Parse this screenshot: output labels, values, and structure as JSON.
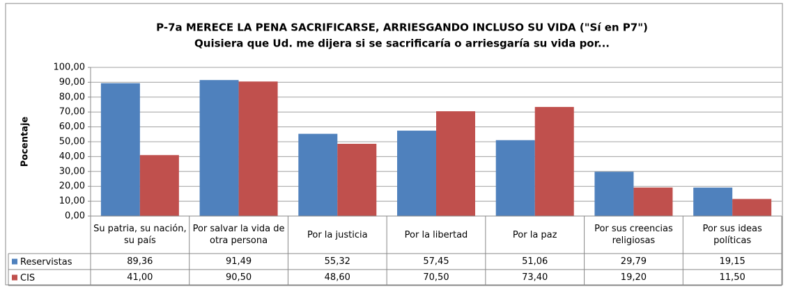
{
  "chart_data": {
    "type": "bar",
    "title": "P-7a MERECE LA PENA SACRIFICARSE, ARRIESGANDO INCLUSO SU VIDA (\"Sí en P7\")",
    "subtitle": "Quisiera que Ud. me dijera si se sacrificaría o arriesgaría su vida por...",
    "ylabel": "Pocentaje",
    "categories": [
      "Su patria, su nación, su país",
      "Por salvar la vida de otra persona",
      "Por la justicia",
      "Por la libertad",
      "Por la paz",
      "Por sus creencias religiosas",
      "Por sus ideas políticas"
    ],
    "series": [
      {
        "name": "Reservistas",
        "color": "#4f81bd",
        "values": [
          89.36,
          91.49,
          55.32,
          57.45,
          51.06,
          29.79,
          19.15
        ],
        "value_labels": [
          "89,36",
          "91,49",
          "55,32",
          "57,45",
          "51,06",
          "29,79",
          "19,15"
        ]
      },
      {
        "name": "CIS",
        "color": "#c0504d",
        "values": [
          41.0,
          90.5,
          48.6,
          70.5,
          73.4,
          19.2,
          11.5
        ],
        "value_labels": [
          "41,00",
          "90,50",
          "48,60",
          "70,50",
          "73,40",
          "19,20",
          "11,50"
        ]
      }
    ],
    "ylim": [
      0,
      100
    ],
    "yticks": [
      {
        "value": 0,
        "label": "0,00"
      },
      {
        "value": 10,
        "label": "10,00"
      },
      {
        "value": 20,
        "label": "20,00"
      },
      {
        "value": 30,
        "label": "30,00"
      },
      {
        "value": 40,
        "label": "40,00"
      },
      {
        "value": 50,
        "label": "50,00"
      },
      {
        "value": 60,
        "label": "60,00"
      },
      {
        "value": 70,
        "label": "70,00"
      },
      {
        "value": 80,
        "label": "80,00"
      },
      {
        "value": 90,
        "label": "90,00"
      },
      {
        "value": 100,
        "label": "100,00"
      }
    ],
    "grid": true
  }
}
